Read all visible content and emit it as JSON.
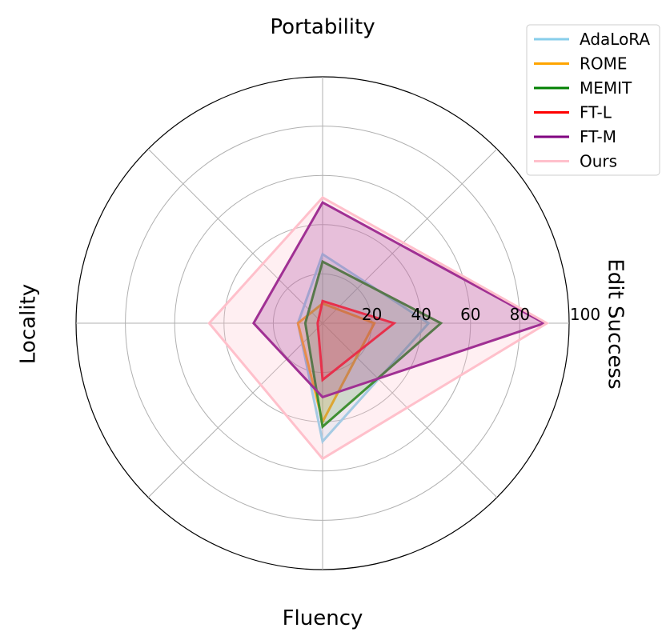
{
  "chart_data": {
    "type": "radar",
    "axes": [
      "Edit Success",
      "Portability",
      "Locality",
      "Fluency"
    ],
    "rlim": [
      0,
      100
    ],
    "rticks": [
      20,
      40,
      60,
      80,
      100
    ],
    "rtick_labels": [
      "20",
      "40",
      "60",
      "80",
      "100"
    ],
    "grid": true,
    "legend_position": "top-right",
    "series": [
      {
        "name": "AdaLoRA",
        "color": "#87CEEB",
        "values": [
          43,
          28,
          10,
          48
        ],
        "fill": false
      },
      {
        "name": "ROME",
        "color": "#FFA500",
        "values": [
          21,
          8,
          10,
          40
        ],
        "fill": false
      },
      {
        "name": "MEMIT",
        "color": "#008000",
        "values": [
          48,
          25,
          7,
          42
        ],
        "fill": false
      },
      {
        "name": "FT-L",
        "color": "#FF0000",
        "values": [
          29,
          9,
          2,
          23
        ],
        "fill": false
      },
      {
        "name": "FT-M",
        "color": "#800080",
        "values": [
          90,
          49,
          28,
          30
        ],
        "fill": true
      },
      {
        "name": "Ours",
        "color": "#FFC0CB",
        "values": [
          91,
          51,
          46,
          55
        ],
        "fill": true
      }
    ]
  }
}
